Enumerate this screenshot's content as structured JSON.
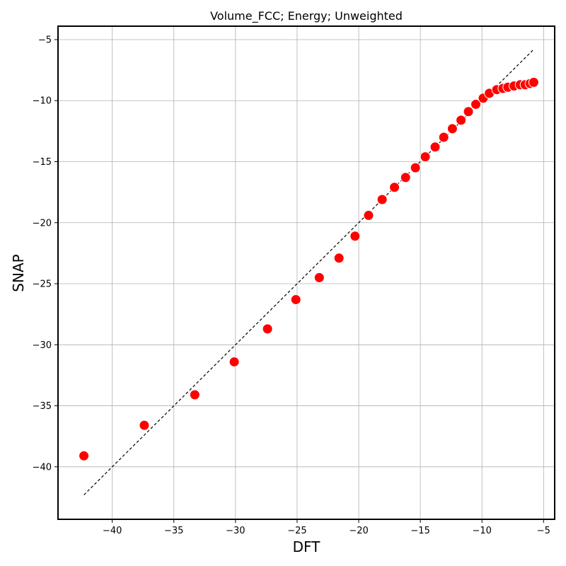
{
  "chart_data": {
    "type": "scatter",
    "title": "Volume_FCC; Energy; Unweighted",
    "xlabel": "DFT",
    "ylabel": "SNAP",
    "xlim": [
      -44.4,
      -4.1
    ],
    "ylim": [
      -44.3,
      -3.9
    ],
    "xticks": [
      -40,
      -35,
      -30,
      -25,
      -20,
      -15,
      -10,
      -5
    ],
    "yticks": [
      -40,
      -35,
      -30,
      -25,
      -20,
      -15,
      -10,
      -5
    ],
    "xtick_labels": [
      "−40",
      "−35",
      "−30",
      "−25",
      "−20",
      "−15",
      "−10",
      "−5"
    ],
    "ytick_labels": [
      "−40",
      "−35",
      "−30",
      "−25",
      "−20",
      "−15",
      "−10",
      "−5"
    ],
    "grid": true,
    "reference_line": {
      "x": [
        -42.3,
        -5.8
      ],
      "y": [
        -42.3,
        -5.8
      ],
      "style": "dashed",
      "color": "#000000"
    },
    "marker_color": "#ff0000",
    "marker_edge": "#ffffff",
    "series": [
      {
        "x": [
          -42.3,
          -37.4,
          -33.3,
          -30.1,
          -27.4,
          -25.1,
          -23.2,
          -21.6,
          -20.3,
          -19.2,
          -18.1,
          -17.1,
          -16.2,
          -15.4,
          -14.6,
          -13.8,
          -13.1,
          -12.4,
          -11.7,
          -11.1,
          -10.5,
          -9.9,
          -9.4,
          -8.8,
          -8.3,
          -7.9,
          -7.4,
          -6.9,
          -6.5,
          -6.1,
          -5.8
        ],
        "y": [
          -39.1,
          -36.6,
          -34.1,
          -31.4,
          -28.7,
          -26.3,
          -24.5,
          -22.9,
          -21.1,
          -19.4,
          -18.1,
          -17.1,
          -16.3,
          -15.5,
          -14.6,
          -13.8,
          -13.0,
          -12.3,
          -11.6,
          -10.9,
          -10.3,
          -9.8,
          -9.4,
          -9.1,
          -9.0,
          -8.9,
          -8.8,
          -8.7,
          -8.7,
          -8.6,
          -8.5
        ]
      }
    ]
  }
}
